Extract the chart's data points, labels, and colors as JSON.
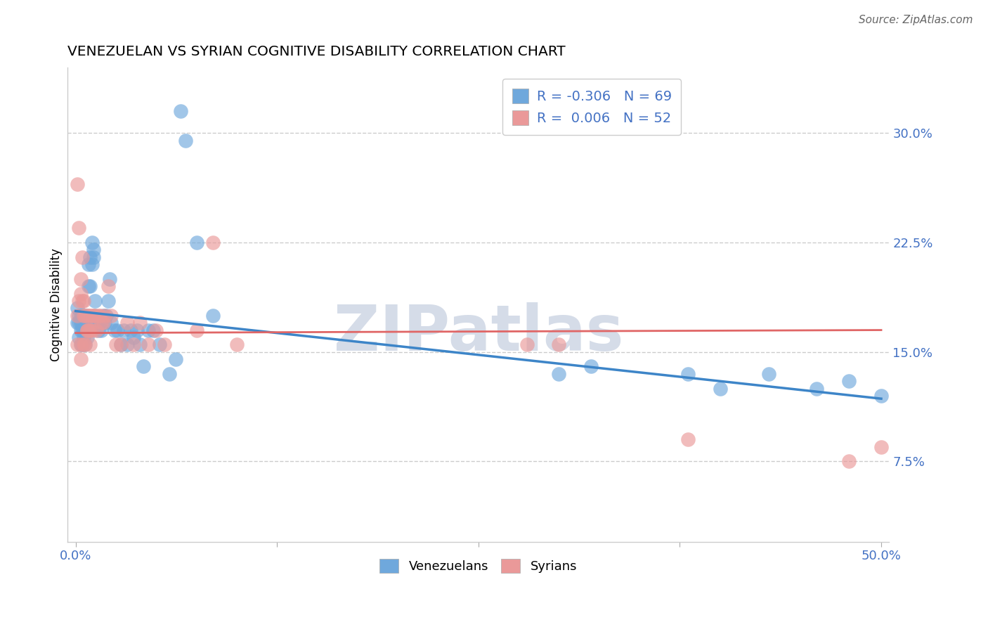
{
  "title": "VENEZUELAN VS SYRIAN COGNITIVE DISABILITY CORRELATION CHART",
  "source": "Source: ZipAtlas.com",
  "ylabel_text": "Cognitive Disability",
  "R_venezuelan": -0.306,
  "N_venezuelan": 69,
  "R_syrian": 0.006,
  "N_syrian": 52,
  "venezuelan_color": "#6fa8dc",
  "syrian_color": "#ea9999",
  "trend_venezuelan_color": "#3d85c8",
  "trend_syrian_color": "#e06666",
  "watermark_color": "#d5dce8",
  "xlim": [
    -0.005,
    0.505
  ],
  "ylim": [
    0.02,
    0.345
  ],
  "y_ticks": [
    0.075,
    0.15,
    0.225,
    0.3
  ],
  "y_tick_labels": [
    "7.5%",
    "15.0%",
    "22.5%",
    "30.0%"
  ],
  "trend_ven_start": 0.178,
  "trend_ven_end": 0.118,
  "trend_syr_start": 0.163,
  "trend_syr_end": 0.165,
  "venezuelan_x": [
    0.001,
    0.001,
    0.002,
    0.002,
    0.002,
    0.003,
    0.003,
    0.003,
    0.003,
    0.004,
    0.004,
    0.004,
    0.004,
    0.005,
    0.005,
    0.005,
    0.006,
    0.006,
    0.006,
    0.007,
    0.007,
    0.007,
    0.008,
    0.008,
    0.009,
    0.009,
    0.01,
    0.01,
    0.011,
    0.011,
    0.012,
    0.012,
    0.013,
    0.014,
    0.015,
    0.016,
    0.017,
    0.018,
    0.019,
    0.02,
    0.021,
    0.022,
    0.024,
    0.026,
    0.028,
    0.03,
    0.032,
    0.034,
    0.036,
    0.038,
    0.04,
    0.042,
    0.045,
    0.048,
    0.052,
    0.058,
    0.062,
    0.065,
    0.068,
    0.075,
    0.085,
    0.3,
    0.32,
    0.38,
    0.4,
    0.43,
    0.46,
    0.48,
    0.5
  ],
  "venezuelan_y": [
    0.17,
    0.18,
    0.16,
    0.17,
    0.175,
    0.155,
    0.165,
    0.17,
    0.175,
    0.155,
    0.165,
    0.17,
    0.175,
    0.16,
    0.165,
    0.175,
    0.155,
    0.165,
    0.175,
    0.16,
    0.17,
    0.175,
    0.195,
    0.21,
    0.195,
    0.215,
    0.21,
    0.225,
    0.22,
    0.215,
    0.185,
    0.175,
    0.17,
    0.165,
    0.17,
    0.165,
    0.175,
    0.17,
    0.175,
    0.185,
    0.2,
    0.17,
    0.165,
    0.165,
    0.155,
    0.165,
    0.155,
    0.165,
    0.16,
    0.165,
    0.155,
    0.14,
    0.165,
    0.165,
    0.155,
    0.135,
    0.145,
    0.315,
    0.295,
    0.225,
    0.175,
    0.135,
    0.14,
    0.135,
    0.125,
    0.135,
    0.125,
    0.13,
    0.12
  ],
  "syrian_x": [
    0.001,
    0.001,
    0.002,
    0.002,
    0.003,
    0.003,
    0.003,
    0.004,
    0.004,
    0.005,
    0.005,
    0.006,
    0.006,
    0.007,
    0.007,
    0.008,
    0.008,
    0.009,
    0.009,
    0.01,
    0.01,
    0.011,
    0.012,
    0.013,
    0.014,
    0.015,
    0.016,
    0.017,
    0.018,
    0.02,
    0.022,
    0.025,
    0.028,
    0.032,
    0.036,
    0.04,
    0.045,
    0.05,
    0.055,
    0.075,
    0.085,
    0.1,
    0.28,
    0.3,
    0.38,
    0.48,
    0.5,
    0.001,
    0.003,
    0.005,
    0.007,
    0.009
  ],
  "syrian_y": [
    0.175,
    0.265,
    0.185,
    0.235,
    0.2,
    0.19,
    0.155,
    0.185,
    0.215,
    0.175,
    0.185,
    0.175,
    0.155,
    0.165,
    0.175,
    0.175,
    0.165,
    0.165,
    0.175,
    0.165,
    0.175,
    0.175,
    0.175,
    0.165,
    0.175,
    0.175,
    0.17,
    0.17,
    0.175,
    0.195,
    0.175,
    0.155,
    0.155,
    0.17,
    0.155,
    0.17,
    0.155,
    0.165,
    0.155,
    0.165,
    0.225,
    0.155,
    0.155,
    0.155,
    0.09,
    0.075,
    0.085,
    0.155,
    0.145,
    0.155,
    0.165,
    0.155
  ]
}
